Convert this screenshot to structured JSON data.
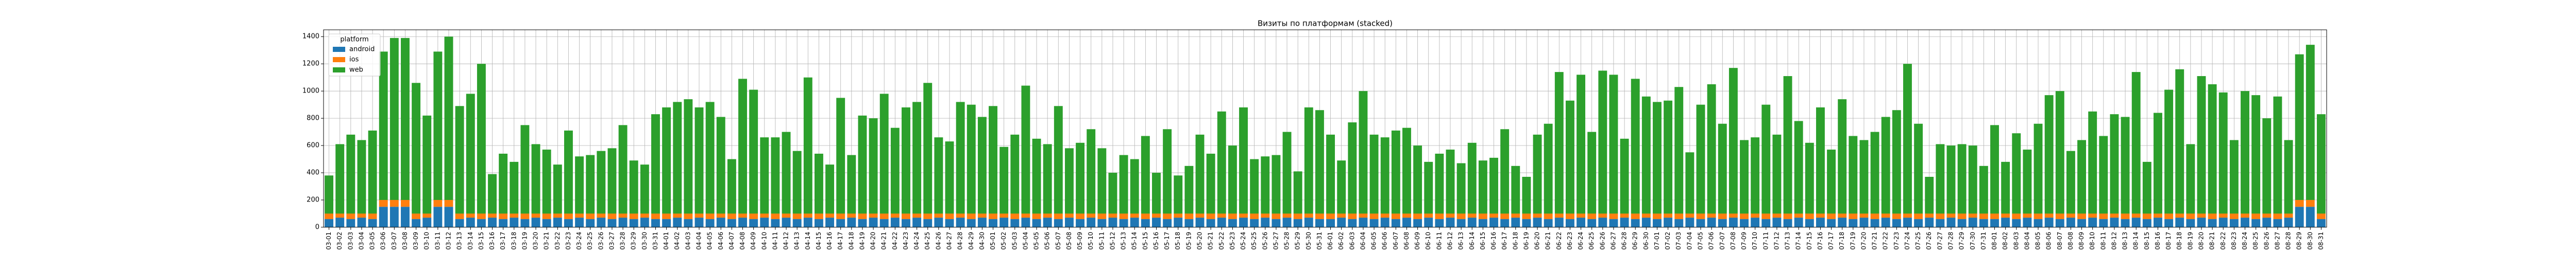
{
  "chart_data": {
    "type": "stacked_bar",
    "title": "Визиты по платформам (stacked)",
    "legend_title": "platform",
    "legend": "upper left",
    "grid": true,
    "ylim": [
      0,
      1450
    ],
    "yticks": [
      0,
      200,
      400,
      600,
      800,
      1000,
      1200,
      1400
    ],
    "categories": [
      "03-01",
      "03-02",
      "03-03",
      "03-04",
      "03-05",
      "03-06",
      "03-07",
      "03-08",
      "03-09",
      "03-10",
      "03-11",
      "03-12",
      "03-13",
      "03-14",
      "03-15",
      "03-16",
      "03-17",
      "03-18",
      "03-19",
      "03-20",
      "03-21",
      "03-22",
      "03-23",
      "03-24",
      "03-25",
      "03-26",
      "03-27",
      "03-28",
      "03-29",
      "03-30",
      "03-31",
      "04-01",
      "04-02",
      "04-03",
      "04-04",
      "04-05",
      "04-06",
      "04-07",
      "04-08",
      "04-09",
      "04-10",
      "04-11",
      "04-12",
      "04-13",
      "04-14",
      "04-15",
      "04-16",
      "04-17",
      "04-18",
      "04-19",
      "04-20",
      "04-21",
      "04-22",
      "04-23",
      "04-24",
      "04-25",
      "04-26",
      "04-27",
      "04-28",
      "04-29",
      "04-30",
      "05-01",
      "05-02",
      "05-03",
      "05-04",
      "05-05",
      "05-06",
      "05-07",
      "05-08",
      "05-09",
      "05-10",
      "05-11",
      "05-12",
      "05-13",
      "05-14",
      "05-15",
      "05-16",
      "05-17",
      "05-18",
      "05-19",
      "05-20",
      "05-21",
      "05-22",
      "05-23",
      "05-24",
      "05-25",
      "05-26",
      "05-27",
      "05-28",
      "05-29",
      "05-30",
      "05-31",
      "06-01",
      "06-02",
      "06-03",
      "06-04",
      "06-05",
      "06-06",
      "06-07",
      "06-08",
      "06-09",
      "06-10",
      "06-11",
      "06-12",
      "06-13",
      "06-14",
      "06-15",
      "06-16",
      "06-17",
      "06-18",
      "06-19",
      "06-20",
      "06-21",
      "06-22",
      "06-23",
      "06-24",
      "06-25",
      "06-26",
      "06-27",
      "06-28",
      "06-29",
      "06-30",
      "07-01",
      "07-02",
      "07-03",
      "07-04",
      "07-05",
      "07-06",
      "07-07",
      "07-08",
      "07-09",
      "07-10",
      "07-11",
      "07-12",
      "07-13",
      "07-14",
      "07-15",
      "07-16",
      "07-17",
      "07-18",
      "07-19",
      "07-20",
      "07-21",
      "07-22",
      "07-23",
      "07-24",
      "07-25",
      "07-26",
      "07-27",
      "07-28",
      "07-29",
      "07-30",
      "07-31",
      "08-01",
      "08-02",
      "08-03",
      "08-04",
      "08-05",
      "08-06",
      "08-07",
      "08-08",
      "08-09",
      "08-10",
      "08-11",
      "08-12",
      "08-13",
      "08-14",
      "08-15",
      "08-16",
      "08-17",
      "08-18",
      "08-19",
      "08-20",
      "08-21",
      "08-22",
      "08-23",
      "08-24",
      "08-25",
      "08-26",
      "08-27",
      "08-28",
      "08-29",
      "08-30",
      "08-31"
    ],
    "series": [
      {
        "name": "android",
        "color": "#1f77b4",
        "values": [
          60,
          70,
          60,
          70,
          60,
          150,
          150,
          150,
          60,
          70,
          150,
          150,
          60,
          70,
          60,
          70,
          60,
          70,
          60,
          70,
          60,
          70,
          60,
          70,
          60,
          70,
          60,
          70,
          60,
          70,
          60,
          60,
          70,
          60,
          70,
          60,
          70,
          60,
          70,
          60,
          70,
          60,
          70,
          60,
          70,
          60,
          70,
          60,
          70,
          60,
          70,
          60,
          70,
          60,
          70,
          60,
          70,
          60,
          70,
          60,
          70,
          60,
          70,
          60,
          70,
          60,
          70,
          60,
          70,
          60,
          70,
          60,
          70,
          60,
          70,
          60,
          70,
          60,
          70,
          60,
          70,
          60,
          70,
          60,
          70,
          60,
          70,
          60,
          70,
          60,
          70,
          60,
          60,
          70,
          60,
          70,
          60,
          70,
          60,
          70,
          60,
          70,
          60,
          70,
          60,
          70,
          60,
          70,
          60,
          70,
          60,
          70,
          60,
          70,
          60,
          70,
          60,
          70,
          60,
          70,
          60,
          70,
          60,
          70,
          60,
          70,
          60,
          70,
          60,
          70,
          60,
          70,
          60,
          70,
          60,
          70,
          60,
          70,
          60,
          70,
          60,
          70,
          60,
          70,
          60,
          70,
          60,
          70,
          60,
          70,
          60,
          70,
          60,
          60,
          70,
          60,
          70,
          60,
          70,
          60,
          70,
          60,
          70,
          60,
          70,
          60,
          70,
          60,
          70,
          60,
          70,
          60,
          70,
          60,
          70,
          60,
          70,
          60,
          70,
          60,
          70,
          150,
          150,
          60
        ]
      },
      {
        "name": "ios",
        "color": "#ff7f0e",
        "values": [
          40,
          30,
          40,
          30,
          40,
          50,
          50,
          50,
          40,
          30,
          50,
          50,
          40,
          30,
          40,
          30,
          40,
          30,
          40,
          30,
          40,
          30,
          40,
          30,
          40,
          30,
          40,
          30,
          40,
          30,
          40,
          40,
          30,
          40,
          30,
          40,
          30,
          40,
          30,
          40,
          30,
          40,
          30,
          40,
          30,
          40,
          30,
          40,
          30,
          40,
          30,
          40,
          30,
          40,
          30,
          40,
          30,
          40,
          30,
          40,
          30,
          40,
          30,
          40,
          30,
          40,
          30,
          40,
          30,
          40,
          30,
          40,
          30,
          40,
          30,
          40,
          30,
          40,
          30,
          40,
          30,
          40,
          30,
          40,
          30,
          40,
          30,
          40,
          30,
          40,
          30,
          40,
          40,
          30,
          40,
          30,
          40,
          30,
          40,
          30,
          40,
          30,
          40,
          30,
          40,
          30,
          40,
          30,
          40,
          30,
          40,
          30,
          40,
          30,
          40,
          30,
          40,
          30,
          40,
          30,
          40,
          30,
          40,
          30,
          40,
          30,
          40,
          30,
          40,
          30,
          40,
          30,
          40,
          30,
          40,
          30,
          40,
          30,
          40,
          30,
          40,
          30,
          40,
          30,
          40,
          30,
          40,
          30,
          40,
          30,
          40,
          30,
          40,
          40,
          30,
          40,
          30,
          40,
          30,
          40,
          30,
          40,
          30,
          40,
          30,
          40,
          30,
          40,
          30,
          40,
          30,
          40,
          30,
          40,
          30,
          40,
          30,
          40,
          30,
          40,
          30,
          50,
          50,
          40
        ]
      },
      {
        "name": "web",
        "color": "#2ca02c",
        "values": [
          280,
          510,
          580,
          540,
          610,
          1090,
          1190,
          1190,
          960,
          720,
          1090,
          1200,
          790,
          880,
          1100,
          290,
          440,
          380,
          650,
          510,
          470,
          360,
          610,
          420,
          430,
          460,
          480,
          650,
          390,
          360,
          730,
          780,
          820,
          840,
          780,
          820,
          710,
          400,
          990,
          910,
          560,
          560,
          600,
          460,
          1000,
          440,
          360,
          850,
          430,
          720,
          700,
          880,
          630,
          780,
          820,
          960,
          560,
          530,
          820,
          800,
          710,
          790,
          490,
          580,
          940,
          550,
          510,
          790,
          480,
          520,
          620,
          480,
          300,
          430,
          400,
          570,
          300,
          620,
          280,
          350,
          580,
          440,
          750,
          500,
          780,
          400,
          420,
          430,
          600,
          310,
          780,
          760,
          580,
          390,
          670,
          900,
          580,
          560,
          610,
          630,
          500,
          380,
          440,
          470,
          370,
          520,
          390,
          410,
          620,
          350,
          270,
          580,
          660,
          1040,
          830,
          1020,
          600,
          1050,
          1020,
          550,
          990,
          860,
          820,
          830,
          930,
          450,
          800,
          950,
          660,
          1070,
          540,
          560,
          800,
          580,
          1010,
          680,
          520,
          780,
          470,
          840,
          570,
          540,
          600,
          710,
          760,
          1100,
          660,
          270,
          510,
          500,
          510,
          500,
          350,
          650,
          380,
          590,
          470,
          660,
          870,
          900,
          460,
          540,
          750,
          570,
          730,
          710,
          1040,
          380,
          740,
          910,
          1060,
          510,
          1010,
          950,
          890,
          540,
          900,
          870,
          700,
          860,
          540,
          1070,
          1140,
          730
        ]
      }
    ]
  }
}
